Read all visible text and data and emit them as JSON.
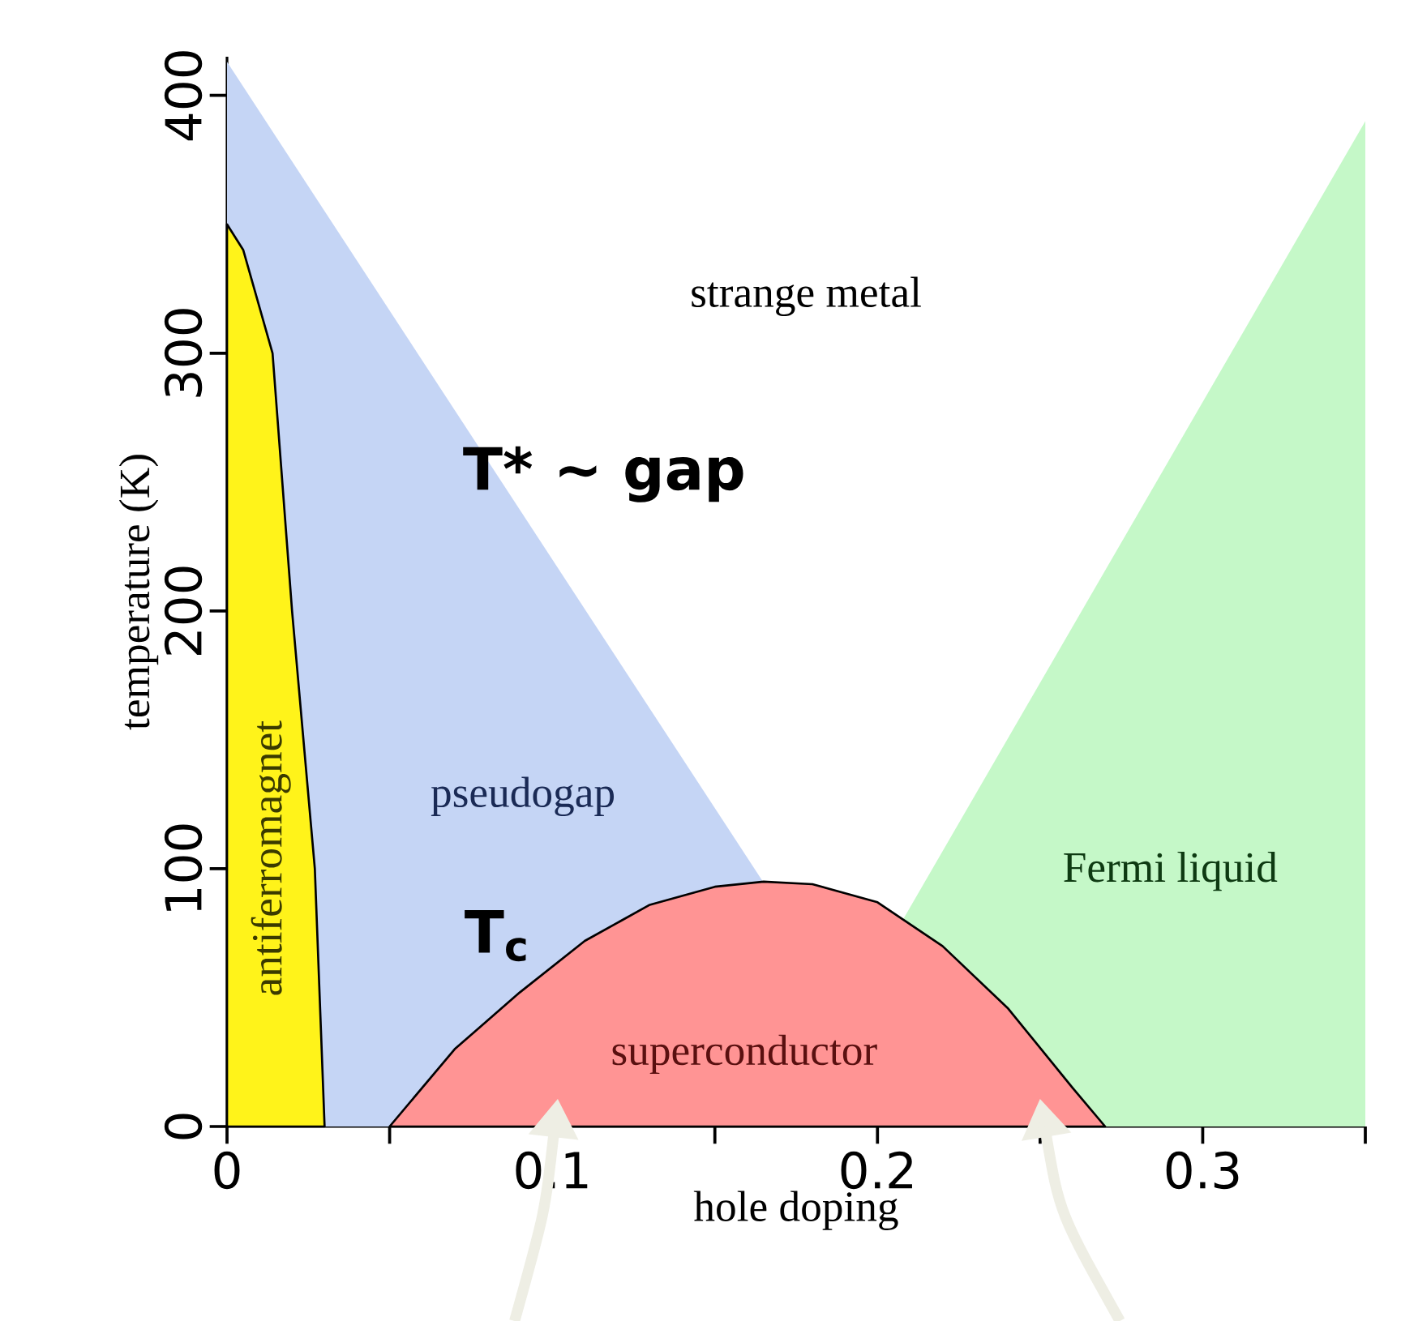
{
  "chart_data": {
    "type": "area",
    "xlabel": "hole doping",
    "ylabel": "temperature (K)",
    "xlim": [
      0,
      0.35
    ],
    "ylim": [
      0,
      415
    ],
    "xticks": [
      0,
      {
        "value": 0.05,
        "label": null
      },
      0.1,
      {
        "value": 0.15,
        "label": null
      },
      0.2,
      {
        "value": 0.25,
        "label": null
      },
      0.3,
      {
        "value": 0.35,
        "label": null
      }
    ],
    "yticks": [
      0,
      100,
      200,
      300,
      400
    ],
    "grid": false,
    "series": [
      {
        "color": "#c5d5f5",
        "x": [
          0,
          0,
          0.214
        ],
        "values": [
          0,
          413,
          0
        ]
      },
      {
        "color": "#c5f8c8",
        "x": [
          0.171,
          0.35,
          0.35
        ],
        "values": [
          0,
          390,
          0
        ]
      },
      {
        "color": "#fff31a",
        "x": [
          0,
          0,
          0.005,
          0.014,
          0.02,
          0.027,
          0.03
        ],
        "values": [
          0,
          350,
          340,
          300,
          200,
          100,
          0
        ]
      },
      {
        "color": "#ff9494",
        "x": [
          0.05,
          0.07,
          0.09,
          0.11,
          0.13,
          0.15,
          0.165,
          0.18,
          0.2,
          0.22,
          0.24,
          0.26,
          0.27
        ],
        "values": [
          0,
          30,
          52,
          72,
          86,
          93,
          95,
          94,
          87,
          70,
          46,
          15,
          0
        ]
      }
    ],
    "annotations": [
      "strange metal",
      "T* ~ gap",
      "pseudogap",
      "Fermi liquid",
      "superconductor",
      "antiferromagnet",
      "T$_{c}$"
    ]
  }
}
